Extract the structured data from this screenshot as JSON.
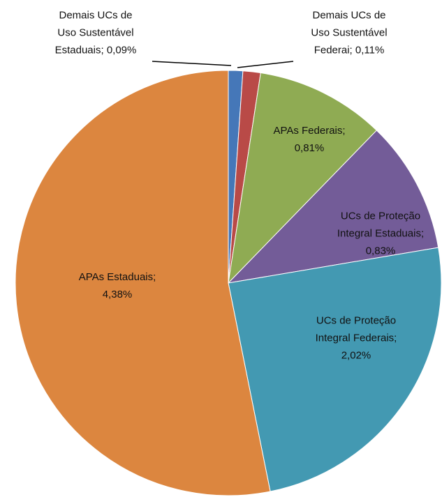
{
  "chart_data": {
    "type": "pie",
    "categories": [
      "Demais UCs de Uso Sustentável Estaduais;",
      "Demais UCs de Uso Sustentável Federai;",
      "APAs Federais;",
      "UCs de Proteção Integral Estaduais;",
      "UCs de Proteção Integral Federais;",
      "APAs Estaduais;"
    ],
    "values": [
      0.09,
      0.11,
      0.81,
      0.83,
      2.02,
      4.38
    ],
    "value_labels": [
      "0,09%",
      "0,11%",
      "0,81%",
      "0,83%",
      "2,02%",
      "4,38%"
    ],
    "colors": [
      "#4577b8",
      "#b94a47",
      "#8fab53",
      "#735c98",
      "#4399b2",
      "#dc863f"
    ]
  }
}
